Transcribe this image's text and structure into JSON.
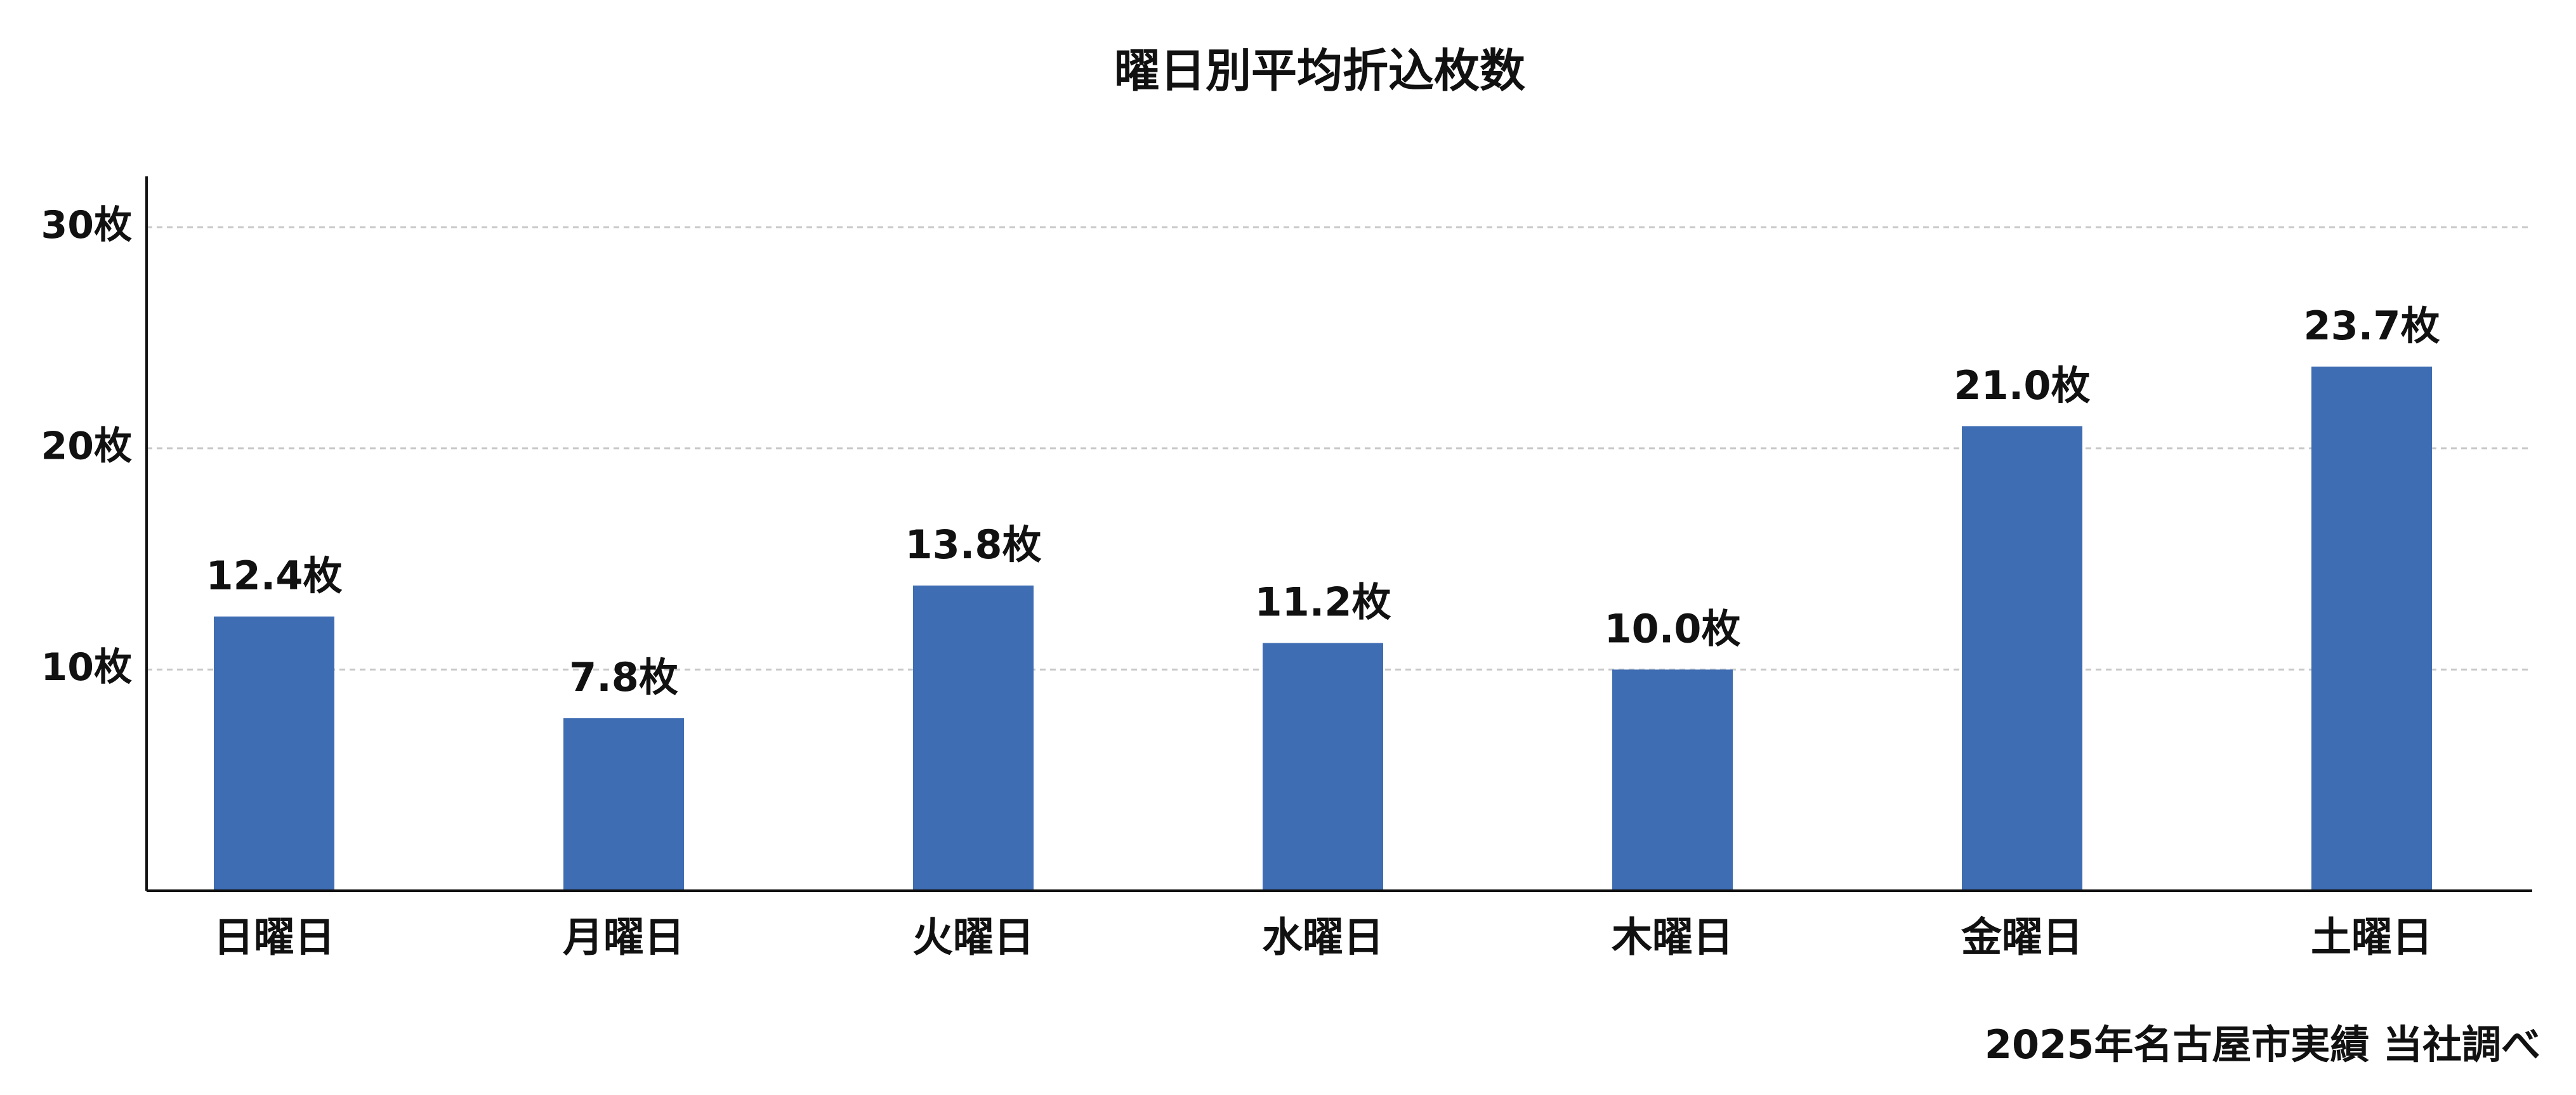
{
  "chart_data": {
    "type": "bar",
    "title": "曜日別平均折込枚数",
    "categories": [
      "日曜日",
      "月曜日",
      "火曜日",
      "水曜日",
      "木曜日",
      "金曜日",
      "土曜日"
    ],
    "values": [
      12.4,
      7.8,
      13.8,
      11.2,
      10.0,
      21.0,
      23.7
    ],
    "value_labels": [
      "12.4枚",
      "7.8枚",
      "13.8枚",
      "11.2枚",
      "10.0枚",
      "21.0枚",
      "23.7枚"
    ],
    "color": "#3f6db3",
    "ylim": [
      0,
      32.3
    ],
    "yticks": [
      {
        "value": 10,
        "label": "10枚"
      },
      {
        "value": 20,
        "label": "20枚"
      },
      {
        "value": 30,
        "label": "30枚"
      }
    ],
    "grid": true,
    "source": "2025年名古屋市実績 当社調べ"
  }
}
